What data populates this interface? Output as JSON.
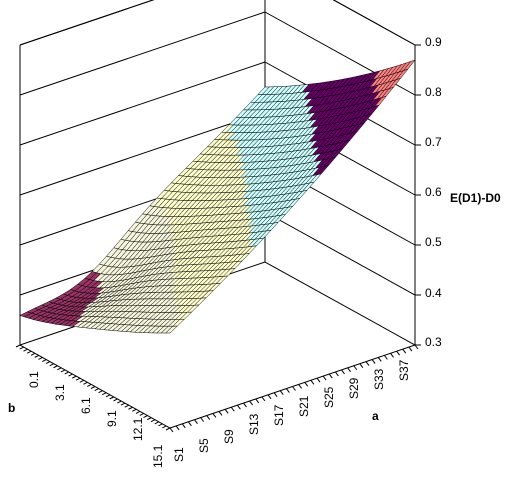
{
  "chart_data": {
    "type": "surface",
    "z_label": "E(D1)-D0",
    "x_label": "a",
    "y_label": "b",
    "z_range": [
      0.3,
      0.9
    ],
    "z_ticks": [
      "0.3",
      "0.4",
      "0.5",
      "0.6",
      "0.7",
      "0.8",
      "0.9"
    ],
    "x_ticks": [
      "S1",
      "S5",
      "S9",
      "S13",
      "S17",
      "S21",
      "S25",
      "S29",
      "S33",
      "S37"
    ],
    "y_ticks": [
      "0.1",
      "3.1",
      "6.1",
      "9.1",
      "12.1",
      "15.1"
    ],
    "grid": true,
    "color_bands": [
      {
        "range": [
          0.3,
          0.4
        ],
        "color": "#993366"
      },
      {
        "range": [
          0.4,
          0.5
        ],
        "color": "#f5f5dc"
      },
      {
        "range": [
          0.5,
          0.6
        ],
        "color": "#ffffcc"
      },
      {
        "range": [
          0.6,
          0.7
        ],
        "color": "#ccffff"
      },
      {
        "range": [
          0.7,
          0.8
        ],
        "color": "#660066"
      },
      {
        "range": [
          0.8,
          0.9
        ],
        "color": "#ff8080"
      }
    ],
    "corner_values": {
      "a_first_b_first": 0.49,
      "a_last_b_first": 0.87,
      "a_last_b_last": 0.65,
      "a_first_b_last": 0.37
    }
  }
}
